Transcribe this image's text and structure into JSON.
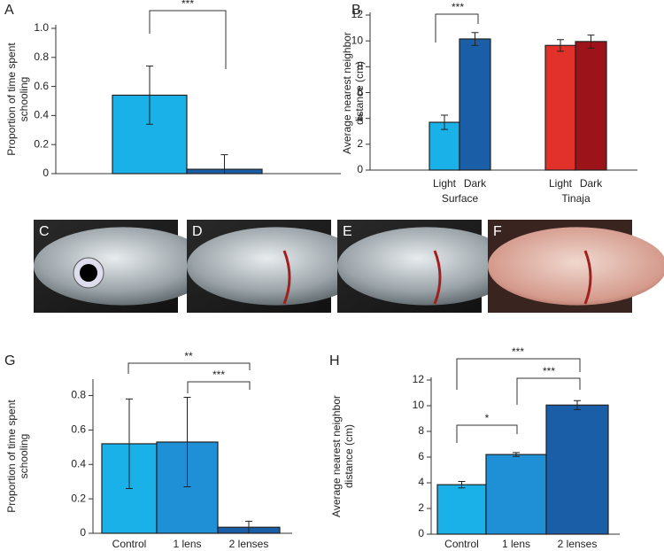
{
  "chart_data": [
    {
      "type": "bar",
      "panel_label": "A",
      "ylabel": [
        "Proportion of time spent",
        "schooling"
      ],
      "values": [
        0.54,
        0.03
      ],
      "errors": [
        0.2,
        0.1
      ],
      "colors": [
        "#1ab0e8",
        "#1a5ea8"
      ],
      "ylim": [
        0,
        1
      ],
      "yticks": [
        0,
        0.2,
        0.4,
        0.6,
        0.8,
        {
          "value": 1,
          "label": "1.0"
        }
      ],
      "annotations": [
        {
          "text": "***"
        }
      ]
    },
    {
      "type": "bar",
      "panel_label": "B",
      "ylabel": [
        "Average nearest neighbor",
        "distance (cm)"
      ],
      "categories": [
        "Light",
        "Dark",
        "Light",
        "Dark"
      ],
      "groups": [
        "Surface",
        "Tinaja"
      ],
      "values": [
        3.7,
        10.15,
        9.65,
        9.95
      ],
      "errors": [
        0.55,
        0.5,
        0.45,
        0.5
      ],
      "colors": [
        "#1ab0e8",
        "#1a5ea8",
        "#e2312b",
        "#9c1419"
      ],
      "ylim": [
        0,
        12
      ],
      "yticks": [
        0,
        2,
        4,
        6,
        8,
        10,
        12
      ],
      "annotations": [
        {
          "text": "***"
        }
      ]
    },
    {
      "type": "bar",
      "panel_label": "G",
      "ylabel": [
        "Proportion of time spent",
        "schooling"
      ],
      "categories": [
        "Control",
        "1 lens",
        "2 lenses"
      ],
      "values": [
        0.52,
        0.53,
        0.035
      ],
      "errors": [
        0.26,
        0.26,
        0.035
      ],
      "colors": [
        "#1ab0e8",
        "#1f8fd6",
        "#1a5ea8"
      ],
      "ylim": [
        0,
        0.88
      ],
      "yticks": [
        0,
        0.2,
        0.4,
        0.6,
        0.8
      ],
      "annotations": [
        {
          "text": "**"
        },
        {
          "text": "***"
        }
      ]
    },
    {
      "type": "bar",
      "panel_label": "H",
      "ylabel": [
        "Average nearest neighbor",
        "distance (cm)"
      ],
      "categories": [
        "Control",
        "1 lens",
        "2 lenses"
      ],
      "values": [
        3.85,
        6.2,
        10.05
      ],
      "errors": [
        0.25,
        0.15,
        0.35
      ],
      "colors": [
        "#1ab0e8",
        "#1f8fd6",
        "#1a5ea8"
      ],
      "ylim": [
        0,
        12
      ],
      "yticks": [
        0,
        2,
        4,
        6,
        8,
        10,
        12
      ],
      "annotations": [
        {
          "text": "***"
        },
        {
          "text": "***"
        },
        {
          "text": "*"
        }
      ]
    }
  ],
  "photos": [
    {
      "label": "C"
    },
    {
      "label": "D"
    },
    {
      "label": "E"
    },
    {
      "label": "F"
    }
  ]
}
